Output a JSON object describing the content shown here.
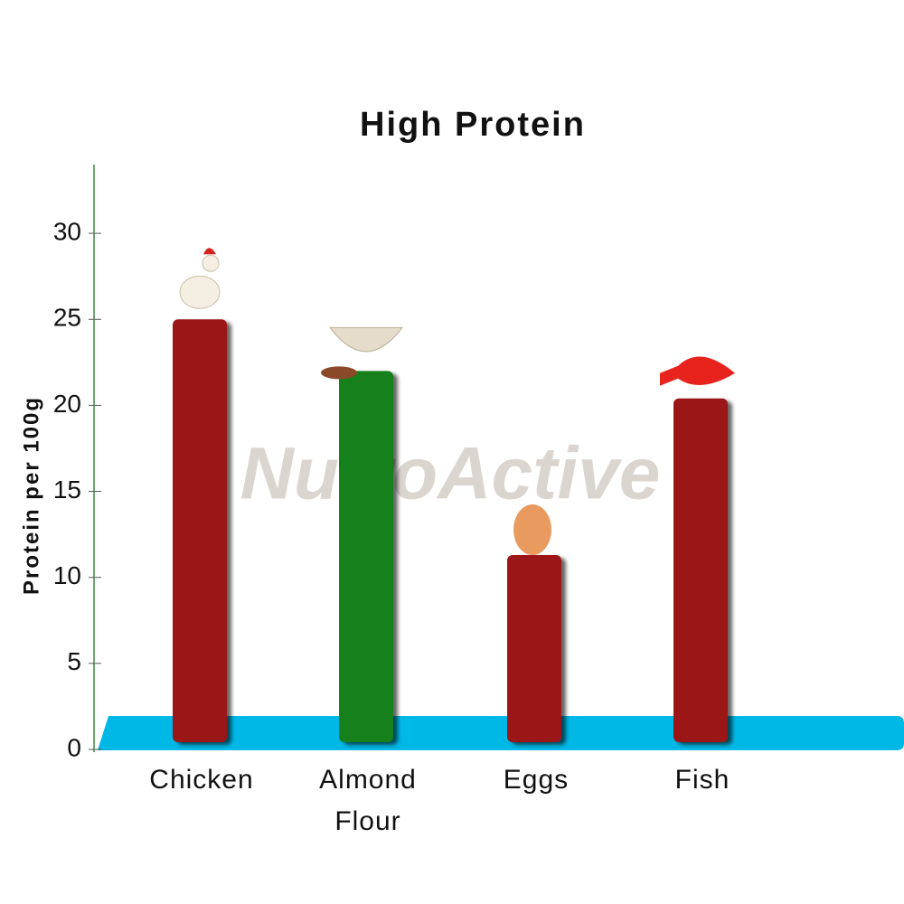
{
  "chart_data": {
    "type": "bar",
    "title": "High Protein",
    "y_label": "Protein per 100g",
    "watermark": "NutroActive",
    "categories": [
      "Chicken",
      "Almond Flour",
      "Eggs",
      "Fish"
    ],
    "values": [
      25,
      22,
      11.3,
      20.4
    ],
    "colors": [
      "#9b1418",
      "#14801a",
      "#9b1418",
      "#9b1418"
    ],
    "ylim": [
      0,
      34
    ],
    "yticks": [
      0,
      5,
      10,
      15,
      20,
      25,
      30
    ]
  }
}
